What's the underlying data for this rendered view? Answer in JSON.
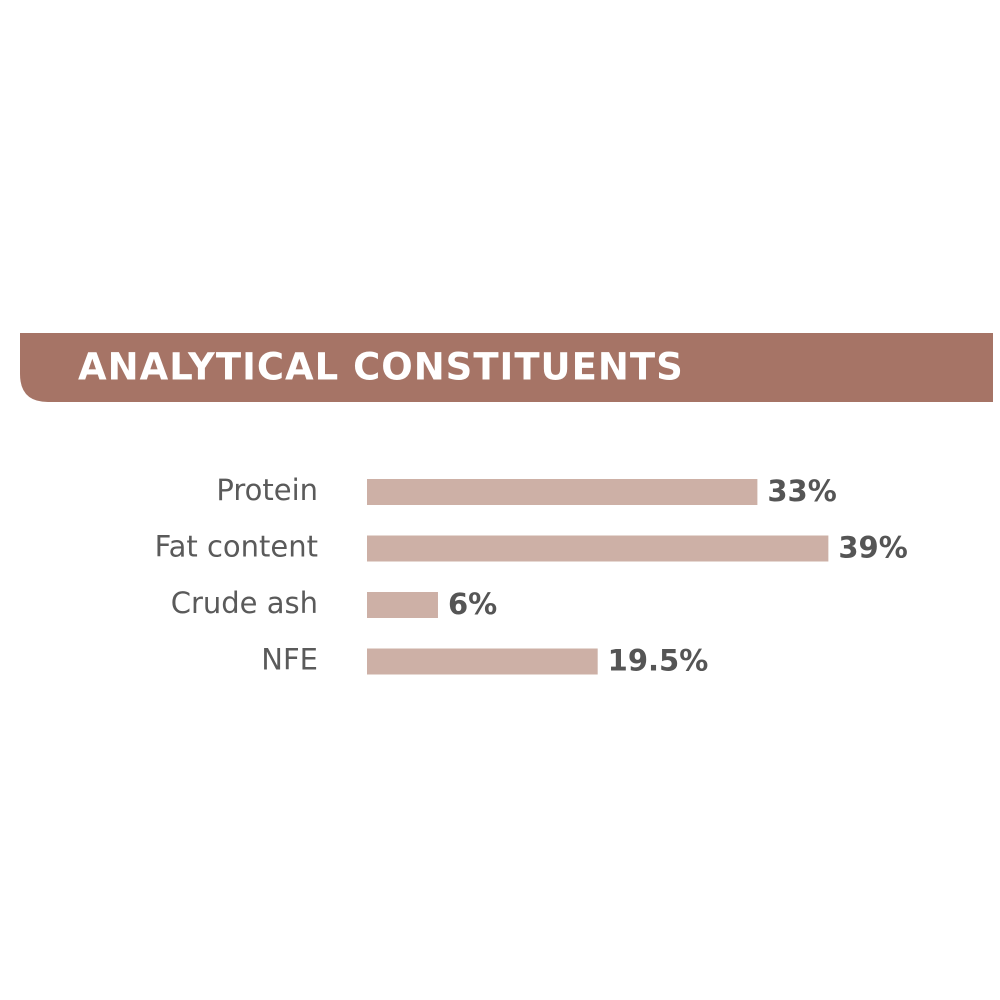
{
  "chart_data": {
    "type": "bar",
    "orientation": "horizontal",
    "title": "ANALYTICAL CONSTITUENTS",
    "categories": [
      "Protein",
      "Fat content",
      "Crude ash",
      "NFE"
    ],
    "values": [
      33,
      39,
      6,
      19.5
    ],
    "value_labels": [
      "33%",
      "39%",
      "6%",
      "19.5%"
    ],
    "color": "#cdb0a6",
    "banner_color": "#a67466"
  }
}
